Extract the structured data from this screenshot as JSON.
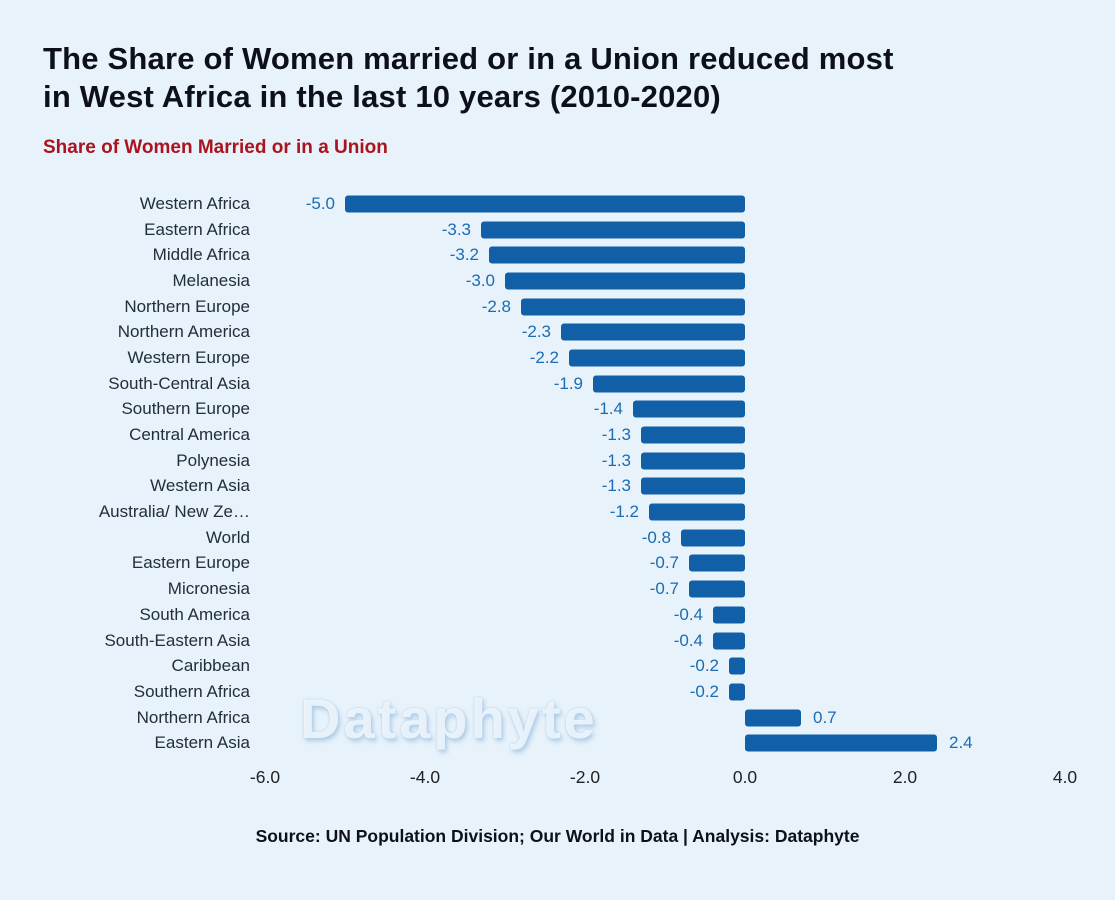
{
  "page": {
    "title": "The Share of Women married or in a Union reduced most\nin West Africa in the last 10 years (2010-2020)",
    "subtitle": "Share of Women Married or in a Union",
    "source": "Source: UN Population Division; Our World in Data | Analysis: Dataphyte",
    "watermark": "Dataphyte"
  },
  "colors": {
    "background": "#e7f2fb",
    "bar": "#1160a7",
    "value_label": "#1b6cb3",
    "subtitle": "#a9141f",
    "title": "#0d1117",
    "category_label": "#222e3a",
    "tick_label": "#222222"
  },
  "chart_data": {
    "type": "bar",
    "orientation": "horizontal",
    "title": "Share of Women Married or in a Union",
    "categories": [
      "Western Africa",
      "Eastern Africa",
      "Middle Africa",
      "Melanesia",
      "Northern Europe",
      "Northern America",
      "Western Europe",
      "South-Central Asia",
      "Southern Europe",
      "Central America",
      "Polynesia",
      "Western Asia",
      "Australia/ New Ze…",
      "World",
      "Eastern Europe",
      "Micronesia",
      "South America",
      "South-Eastern Asia",
      "Caribbean",
      "Southern Africa",
      "Northern Africa",
      "Eastern Asia"
    ],
    "values": [
      -5.0,
      -3.3,
      -3.2,
      -3.0,
      -2.8,
      -2.3,
      -2.2,
      -1.9,
      -1.4,
      -1.3,
      -1.3,
      -1.3,
      -1.2,
      -0.8,
      -0.7,
      -0.7,
      -0.4,
      -0.4,
      -0.2,
      -0.2,
      0.7,
      2.4
    ],
    "value_labels": [
      "-5.0",
      "-3.3",
      "-3.2",
      "-3.0",
      "-2.8",
      "-2.3",
      "-2.2",
      "-1.9",
      "-1.4",
      "-1.3",
      "-1.3",
      "-1.3",
      "-1.2",
      "-0.8",
      "-0.7",
      "-0.7",
      "-0.4",
      "-0.4",
      "-0.2",
      "-0.2",
      "0.7",
      "2.4"
    ],
    "xticks": [
      "-6.0",
      "-4.0",
      "-2.0",
      "0.0",
      "2.0",
      "4.0"
    ],
    "xlim": [
      -6,
      4
    ],
    "grid": false,
    "legend": false
  }
}
